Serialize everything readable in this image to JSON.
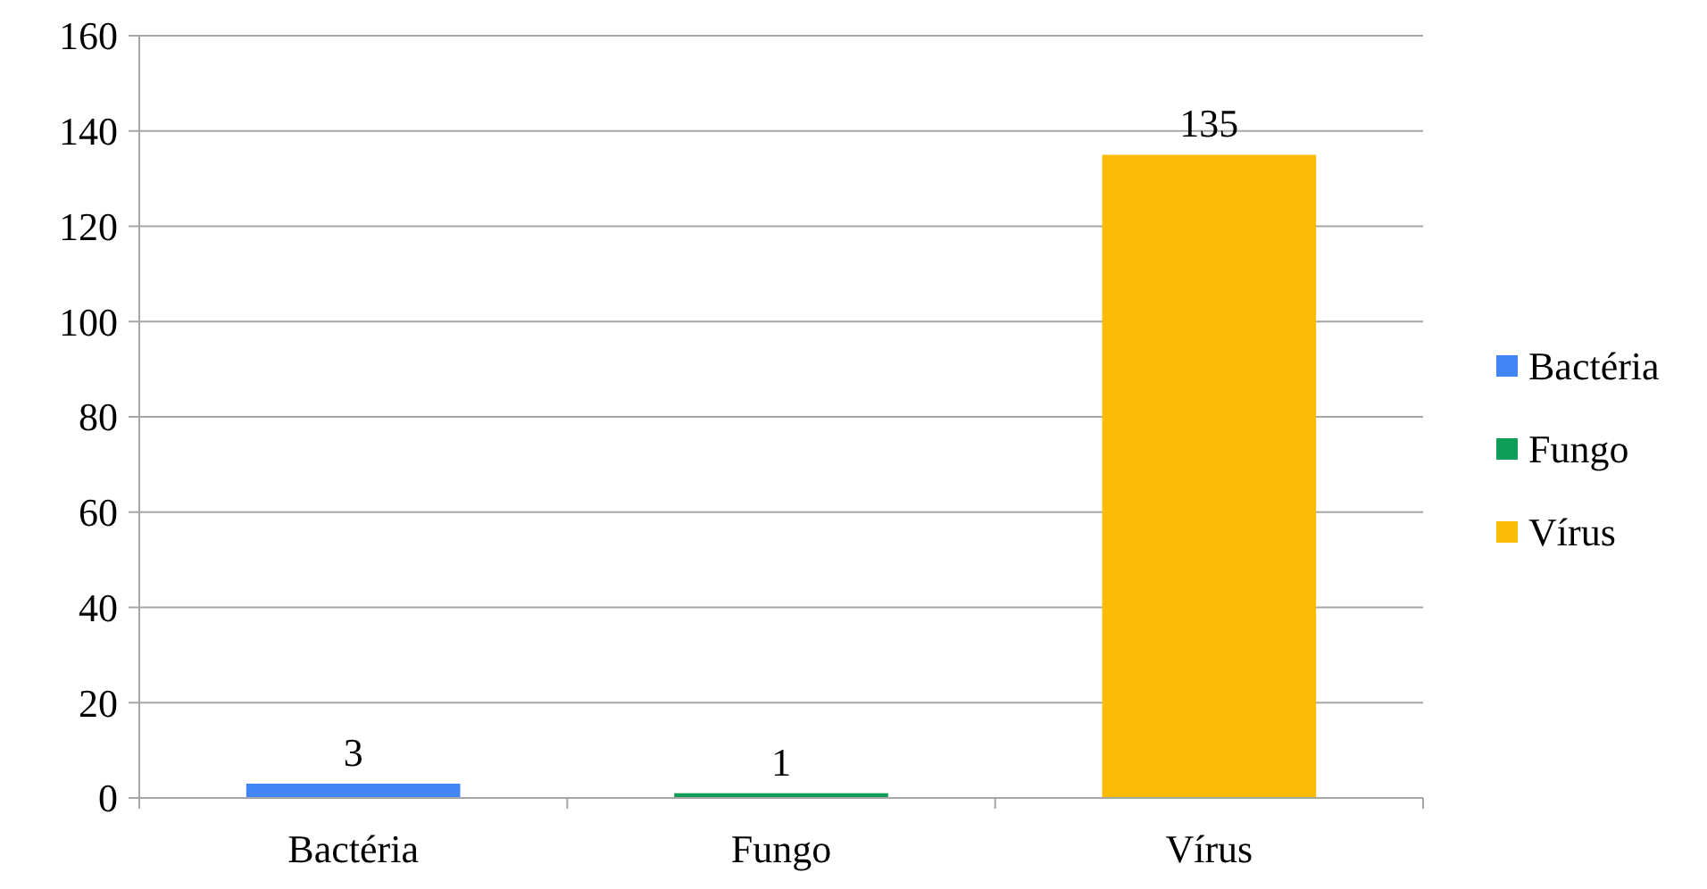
{
  "chart_data": {
    "type": "bar",
    "categories": [
      "Bactéria",
      "Fungo",
      "Vírus"
    ],
    "series": [
      {
        "name": "Bactéria",
        "color": "#4285f4",
        "values": [
          3,
          null,
          null
        ]
      },
      {
        "name": "Fungo",
        "color": "#0f9d58",
        "values": [
          null,
          1,
          null
        ]
      },
      {
        "name": "Vírus",
        "color": "#fbbc05",
        "values": [
          null,
          null,
          135
        ]
      }
    ],
    "ylim": [
      0,
      160
    ],
    "yticks": [
      0,
      20,
      40,
      60,
      80,
      100,
      120,
      140,
      160
    ],
    "grid": "y",
    "legend": "right",
    "data_labels": true
  }
}
